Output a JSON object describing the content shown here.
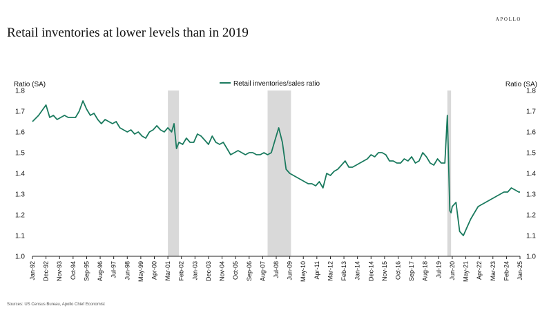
{
  "header": {
    "brand": "APOLLO",
    "title": "Retail inventories at lower levels than in 2019"
  },
  "footer": {
    "source": "Sources: US Census Bureau, Apollo Chief Economist"
  },
  "colors": {
    "line": "#1a7a5e",
    "recession": "#d9d9d9",
    "text": "#111111"
  },
  "chart_data": {
    "type": "line",
    "title": "",
    "ylabel_left": "Ratio (SA)",
    "ylabel_right": "Ratio (SA)",
    "ylim": [
      1.0,
      1.8
    ],
    "y_ticks": [
      "1.0",
      "1.1",
      "1.2",
      "1.3",
      "1.4",
      "1.5",
      "1.6",
      "1.7",
      "1.8"
    ],
    "x_tick_labels": [
      "Jan-92",
      "Dec-92",
      "Nov-93",
      "Oct-94",
      "Sep-95",
      "Aug-96",
      "Jul-97",
      "Jun-98",
      "May-99",
      "Apr-00",
      "Mar-01",
      "Feb-02",
      "Jan-03",
      "Dec-03",
      "Nov-04",
      "Oct-05",
      "Sep-06",
      "Aug-07",
      "Jul-08",
      "Jun-09",
      "May-10",
      "Apr-11",
      "Mar-12",
      "Feb-13",
      "Jan-14",
      "Dec-14",
      "Nov-15",
      "Oct-16",
      "Sep-17",
      "Aug-18",
      "Jul-19",
      "Jun-20",
      "May-21",
      "Apr-22",
      "Mar-23",
      "Feb-24",
      "Jan-25"
    ],
    "legend": {
      "position": "top-center",
      "entries": [
        "Retail inventories/sales ratio"
      ]
    },
    "grid": false,
    "shaded_periods": [
      {
        "start": "2001-03",
        "end": "2001-11"
      },
      {
        "start": "2007-12",
        "end": "2009-06"
      },
      {
        "start": "2020-02",
        "end": "2020-04"
      }
    ],
    "series": [
      {
        "name": "Retail inventories/sales ratio",
        "x": [
          "1992-01",
          "1992-06",
          "1992-12",
          "1993-03",
          "1993-06",
          "1993-09",
          "1993-12",
          "1994-03",
          "1994-06",
          "1994-09",
          "1994-12",
          "1995-03",
          "1995-06",
          "1995-09",
          "1995-12",
          "1996-03",
          "1996-06",
          "1996-09",
          "1996-12",
          "1997-03",
          "1997-06",
          "1997-09",
          "1997-12",
          "1998-03",
          "1998-06",
          "1998-09",
          "1998-12",
          "1999-03",
          "1999-06",
          "1999-09",
          "1999-12",
          "2000-03",
          "2000-06",
          "2000-09",
          "2000-12",
          "2001-03",
          "2001-06",
          "2001-08",
          "2001-10",
          "2001-12",
          "2002-03",
          "2002-06",
          "2002-09",
          "2002-12",
          "2003-03",
          "2003-06",
          "2003-09",
          "2003-12",
          "2004-03",
          "2004-06",
          "2004-09",
          "2004-12",
          "2005-03",
          "2005-06",
          "2005-09",
          "2005-12",
          "2006-03",
          "2006-06",
          "2006-09",
          "2006-12",
          "2007-03",
          "2007-06",
          "2007-09",
          "2007-12",
          "2008-03",
          "2008-06",
          "2008-09",
          "2008-12",
          "2009-03",
          "2009-06",
          "2009-09",
          "2009-12",
          "2010-03",
          "2010-06",
          "2010-09",
          "2010-12",
          "2011-03",
          "2011-06",
          "2011-09",
          "2011-12",
          "2012-03",
          "2012-06",
          "2012-09",
          "2012-12",
          "2013-03",
          "2013-06",
          "2013-09",
          "2013-12",
          "2014-03",
          "2014-06",
          "2014-09",
          "2014-12",
          "2015-03",
          "2015-06",
          "2015-09",
          "2015-12",
          "2016-03",
          "2016-06",
          "2016-09",
          "2016-12",
          "2017-03",
          "2017-06",
          "2017-09",
          "2017-12",
          "2018-03",
          "2018-06",
          "2018-09",
          "2018-12",
          "2019-03",
          "2019-06",
          "2019-09",
          "2019-12",
          "2020-02",
          "2020-04",
          "2020-05",
          "2020-06",
          "2020-09",
          "2020-12",
          "2021-03",
          "2021-06",
          "2021-09",
          "2021-12",
          "2022-03",
          "2022-06",
          "2022-09",
          "2022-12",
          "2023-03",
          "2023-06",
          "2023-09",
          "2023-12",
          "2024-03",
          "2024-06",
          "2024-09",
          "2024-12",
          "2025-01"
        ],
        "y": [
          1.65,
          1.68,
          1.73,
          1.67,
          1.68,
          1.66,
          1.67,
          1.68,
          1.67,
          1.67,
          1.67,
          1.7,
          1.75,
          1.71,
          1.68,
          1.69,
          1.66,
          1.64,
          1.66,
          1.65,
          1.64,
          1.65,
          1.62,
          1.61,
          1.6,
          1.61,
          1.59,
          1.6,
          1.58,
          1.57,
          1.6,
          1.61,
          1.63,
          1.61,
          1.6,
          1.62,
          1.6,
          1.64,
          1.52,
          1.55,
          1.54,
          1.57,
          1.55,
          1.55,
          1.59,
          1.58,
          1.56,
          1.54,
          1.58,
          1.55,
          1.54,
          1.55,
          1.52,
          1.49,
          1.5,
          1.51,
          1.5,
          1.49,
          1.5,
          1.5,
          1.49,
          1.49,
          1.5,
          1.49,
          1.5,
          1.56,
          1.62,
          1.55,
          1.42,
          1.4,
          1.39,
          1.38,
          1.37,
          1.36,
          1.35,
          1.35,
          1.34,
          1.36,
          1.33,
          1.4,
          1.39,
          1.41,
          1.42,
          1.44,
          1.46,
          1.43,
          1.43,
          1.44,
          1.45,
          1.46,
          1.47,
          1.49,
          1.48,
          1.5,
          1.5,
          1.49,
          1.46,
          1.46,
          1.45,
          1.45,
          1.47,
          1.46,
          1.48,
          1.45,
          1.46,
          1.5,
          1.48,
          1.45,
          1.44,
          1.47,
          1.45,
          1.45,
          1.68,
          1.22,
          1.21,
          1.24,
          1.26,
          1.12,
          1.1,
          1.14,
          1.18,
          1.21,
          1.24,
          1.25,
          1.26,
          1.27,
          1.28,
          1.29,
          1.3,
          1.31,
          1.31,
          1.33,
          1.32,
          1.31,
          1.31
        ]
      }
    ]
  }
}
